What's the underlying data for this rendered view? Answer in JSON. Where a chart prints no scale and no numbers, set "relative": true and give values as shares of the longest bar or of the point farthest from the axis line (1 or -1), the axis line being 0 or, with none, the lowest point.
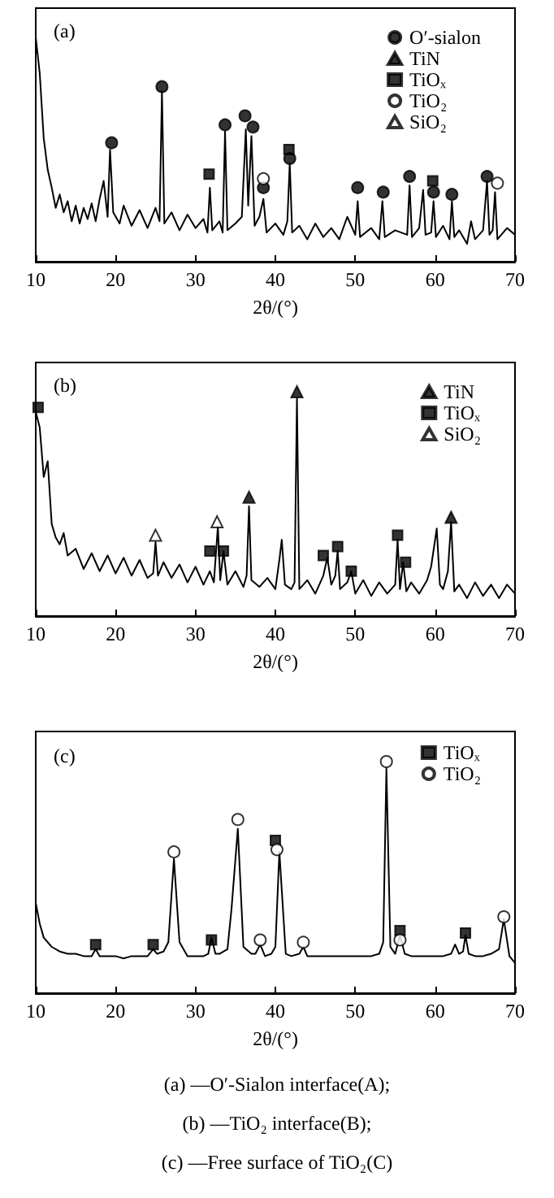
{
  "chart_data": [
    {
      "type": "line",
      "title": "(a)",
      "xlabel": "2θ/(°)",
      "xlim": [
        10,
        70
      ],
      "xticks": [
        10,
        20,
        30,
        40,
        50,
        60,
        70
      ],
      "relative": true,
      "tick_labels": "x",
      "legend": "top right",
      "grid": false,
      "marker": "none",
      "series": [
        {
          "type": "line",
          "color": "#000000",
          "x": [
            10,
            10.5,
            11,
            11.5,
            12,
            12.5,
            13,
            13.5,
            14,
            14.5,
            15,
            15.5,
            16,
            16.5,
            17,
            17.5,
            18,
            18.5,
            19,
            19.3,
            19.7,
            20.5,
            21,
            22,
            23,
            24,
            25,
            25.5,
            25.8,
            26.1,
            27,
            28,
            29,
            30,
            31,
            31.5,
            31.8,
            32.1,
            33,
            33.4,
            33.7,
            34,
            35,
            35.8,
            36.3,
            36.6,
            37,
            37.4,
            38,
            38.5,
            38.9,
            40,
            41,
            41.5,
            41.8,
            42.1,
            43,
            44,
            45,
            46,
            47,
            48,
            49,
            50,
            50.3,
            50.6,
            52,
            53,
            53.4,
            53.7,
            55,
            56.5,
            56.8,
            57.1,
            58,
            58.5,
            58.8,
            59.5,
            59.8,
            60.1,
            61,
            61.8,
            62.1,
            62.4,
            63,
            64,
            64.5,
            65,
            66,
            66.5,
            66.8,
            67.2,
            67.5,
            67.8,
            69,
            70
          ],
          "values": [
            1.0,
            0.84,
            0.55,
            0.41,
            0.33,
            0.24,
            0.3,
            0.22,
            0.27,
            0.18,
            0.25,
            0.17,
            0.24,
            0.19,
            0.26,
            0.18,
            0.28,
            0.36,
            0.2,
            0.5,
            0.22,
            0.17,
            0.25,
            0.16,
            0.23,
            0.15,
            0.24,
            0.18,
            0.76,
            0.17,
            0.22,
            0.14,
            0.21,
            0.15,
            0.19,
            0.13,
            0.33,
            0.14,
            0.18,
            0.13,
            0.58,
            0.14,
            0.17,
            0.2,
            0.59,
            0.25,
            0.56,
            0.16,
            0.2,
            0.28,
            0.13,
            0.17,
            0.12,
            0.18,
            0.44,
            0.13,
            0.16,
            0.1,
            0.17,
            0.11,
            0.15,
            0.1,
            0.2,
            0.12,
            0.27,
            0.11,
            0.15,
            0.1,
            0.27,
            0.11,
            0.14,
            0.12,
            0.34,
            0.11,
            0.15,
            0.32,
            0.12,
            0.13,
            0.27,
            0.11,
            0.16,
            0.1,
            0.27,
            0.11,
            0.14,
            0.08,
            0.18,
            0.1,
            0.14,
            0.36,
            0.12,
            0.14,
            0.31,
            0.1,
            0.15,
            0.12
          ]
        },
        {
          "type": "scatter",
          "name": "O′-sialon",
          "color": "#000000",
          "marker": "circle",
          "x": [
            19.5,
            25.8,
            33.7,
            36.2,
            37.2,
            38.5,
            41.8,
            50.3,
            53.5,
            56.8,
            59.8,
            62.1,
            66.5
          ],
          "values": [
            0.53,
            0.78,
            0.61,
            0.65,
            0.6,
            0.33,
            0.46,
            0.33,
            0.31,
            0.38,
            0.31,
            0.3,
            0.38
          ]
        },
        {
          "type": "scatter",
          "name": "TiN",
          "color": "#000000",
          "marker": "triangle"
        },
        {
          "type": "scatter",
          "name": "TiOₓ",
          "color": "#000000",
          "marker": "square",
          "x": [
            31.7,
            41.7,
            59.7
          ],
          "values": [
            0.39,
            0.5,
            0.36
          ]
        },
        {
          "type": "scatter",
          "name": "TiO₂",
          "color": "#ffffff",
          "marker": "circle",
          "x": [
            38.5,
            67.8
          ],
          "values": [
            0.37,
            0.35
          ]
        },
        {
          "type": "scatter",
          "name": "SiO₂",
          "color": "#ffffff",
          "marker": "triangle"
        }
      ]
    },
    {
      "type": "line",
      "title": "(b)",
      "xlabel": "2θ/(°)",
      "xlim": [
        10,
        70
      ],
      "xticks": [
        10,
        20,
        30,
        40,
        50,
        60,
        70
      ],
      "relative": true,
      "tick_labels": "x",
      "legend": "top right",
      "grid": false,
      "marker": "none",
      "series": [
        {
          "type": "line",
          "color": "#000000",
          "x": [
            10,
            10.5,
            11,
            11.5,
            12,
            12.5,
            13,
            13.5,
            14,
            15,
            16,
            17,
            18,
            19,
            20,
            21,
            22,
            23,
            24,
            24.7,
            25,
            25.3,
            26,
            27,
            28,
            29,
            30,
            31,
            31.8,
            32.3,
            32.8,
            33.1,
            33.5,
            34,
            35,
            36,
            36.4,
            36.7,
            37,
            38,
            39,
            40,
            40.5,
            40.8,
            41.2,
            42,
            42.4,
            42.7,
            43,
            44,
            45,
            46,
            46.5,
            47,
            47.5,
            47.8,
            48.1,
            49,
            49.5,
            50,
            51,
            52,
            53,
            54,
            55,
            55.3,
            55.6,
            56,
            56.4,
            57,
            58,
            59,
            59.5,
            60.2,
            60.6,
            61,
            61.6,
            62,
            62.4,
            63,
            64,
            65,
            66,
            67,
            68,
            69,
            70
          ],
          "values": [
            0.91,
            0.84,
            0.62,
            0.69,
            0.41,
            0.35,
            0.32,
            0.37,
            0.27,
            0.3,
            0.21,
            0.28,
            0.2,
            0.27,
            0.19,
            0.26,
            0.18,
            0.25,
            0.17,
            0.19,
            0.33,
            0.18,
            0.24,
            0.17,
            0.23,
            0.15,
            0.22,
            0.14,
            0.2,
            0.15,
            0.4,
            0.16,
            0.29,
            0.14,
            0.2,
            0.13,
            0.18,
            0.49,
            0.16,
            0.13,
            0.17,
            0.12,
            0.25,
            0.34,
            0.14,
            0.12,
            0.15,
            0.97,
            0.12,
            0.16,
            0.1,
            0.18,
            0.26,
            0.14,
            0.18,
            0.29,
            0.12,
            0.15,
            0.2,
            0.1,
            0.16,
            0.09,
            0.15,
            0.1,
            0.14,
            0.34,
            0.12,
            0.24,
            0.11,
            0.15,
            0.1,
            0.16,
            0.22,
            0.39,
            0.14,
            0.12,
            0.2,
            0.42,
            0.11,
            0.14,
            0.08,
            0.15,
            0.09,
            0.14,
            0.08,
            0.14,
            0.1
          ]
        },
        {
          "type": "scatter",
          "name": "TiN",
          "color": "#000000",
          "marker": "triangle",
          "x": [
            36.7,
            42.7,
            62
          ],
          "values": [
            0.53,
            1.0,
            0.44
          ]
        },
        {
          "type": "scatter",
          "name": "TiOₓ",
          "color": "#000000",
          "marker": "square",
          "x": [
            10.3,
            31.8,
            33.5,
            46,
            47.8,
            49.5,
            55.3,
            56.3
          ],
          "values": [
            0.93,
            0.29,
            0.29,
            0.27,
            0.31,
            0.2,
            0.36,
            0.24
          ]
        },
        {
          "type": "scatter",
          "name": "SiO₂",
          "color": "#ffffff",
          "marker": "triangle",
          "x": [
            25,
            32.7
          ],
          "values": [
            0.36,
            0.42
          ]
        }
      ]
    },
    {
      "type": "line",
      "title": "(c)",
      "xlabel": "2θ/(°)",
      "xlim": [
        10,
        70
      ],
      "xticks": [
        10,
        20,
        30,
        40,
        50,
        60,
        70
      ],
      "relative": true,
      "tick_labels": "x",
      "legend": "top right",
      "grid": false,
      "marker": "none",
      "annotations": [
        "(a) —O′-Sialon interface(A);",
        "(b) —TiO₂ interface(B);",
        "(c) —Free surface of TiO₂(C)"
      ],
      "series": [
        {
          "type": "line",
          "color": "#000000",
          "x": [
            10,
            10.5,
            11,
            12,
            13,
            14,
            15,
            16,
            17,
            17.5,
            18,
            19,
            20,
            21,
            22,
            23,
            24,
            24.7,
            25.2,
            26,
            26.6,
            27.3,
            28,
            29,
            30,
            31,
            31.6,
            32,
            32.5,
            33,
            34,
            34.5,
            35.3,
            36,
            37,
            37.5,
            38.1,
            38.7,
            39.5,
            40,
            40.5,
            41.3,
            42,
            43,
            43.5,
            44,
            45,
            47,
            49,
            51,
            52,
            53,
            53.5,
            53.9,
            54.4,
            55,
            55.6,
            56.2,
            57,
            59,
            61,
            62,
            62.5,
            63,
            63.5,
            63.8,
            64.2,
            65,
            66,
            67,
            68,
            68.6,
            69.3,
            70
          ],
          "values": [
            0.39,
            0.3,
            0.24,
            0.2,
            0.18,
            0.17,
            0.17,
            0.16,
            0.16,
            0.19,
            0.16,
            0.16,
            0.16,
            0.15,
            0.16,
            0.16,
            0.16,
            0.19,
            0.17,
            0.18,
            0.22,
            0.58,
            0.22,
            0.16,
            0.16,
            0.16,
            0.17,
            0.24,
            0.17,
            0.17,
            0.19,
            0.36,
            0.71,
            0.2,
            0.17,
            0.17,
            0.21,
            0.16,
            0.17,
            0.2,
            0.61,
            0.17,
            0.16,
            0.17,
            0.2,
            0.16,
            0.16,
            0.16,
            0.16,
            0.16,
            0.16,
            0.17,
            0.22,
            0.97,
            0.2,
            0.17,
            0.25,
            0.17,
            0.16,
            0.16,
            0.16,
            0.17,
            0.21,
            0.17,
            0.18,
            0.25,
            0.17,
            0.16,
            0.16,
            0.17,
            0.19,
            0.32,
            0.16,
            0.13
          ]
        },
        {
          "type": "scatter",
          "name": "TiOₓ",
          "color": "#000000",
          "marker": "square",
          "x": [
            17.5,
            24.7,
            32,
            40,
            55.6,
            63.8
          ],
          "values": [
            0.21,
            0.21,
            0.23,
            0.66,
            0.27,
            0.26
          ]
        },
        {
          "type": "scatter",
          "name": "TiO₂",
          "color": "#ffffff",
          "marker": "circle",
          "x": [
            27.3,
            35.3,
            38.1,
            40.2,
            43.5,
            53.9,
            55.6,
            68.6
          ],
          "values": [
            0.61,
            0.75,
            0.23,
            0.62,
            0.22,
            1.0,
            0.23,
            0.33
          ]
        }
      ]
    }
  ]
}
